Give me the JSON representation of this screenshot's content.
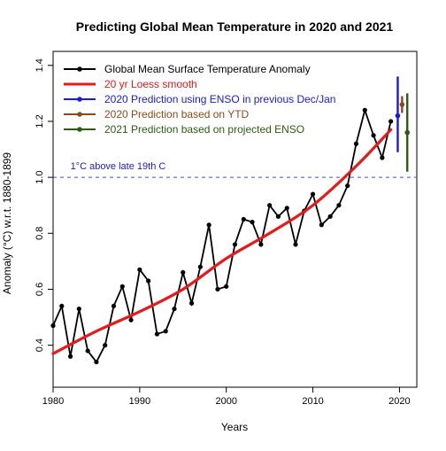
{
  "chart_data": {
    "type": "line",
    "title": "Predicting Global Mean Temperature in 2020 and 2021",
    "xlabel": "Years",
    "ylabel": "Anomaly (°C) w.r.t. 1880-1899",
    "xlim": [
      1980,
      2022
    ],
    "ylim": [
      0.25,
      1.45
    ],
    "x_ticks": [
      1980,
      1990,
      2000,
      2010,
      2020
    ],
    "y_ticks": [
      0.4,
      0.6,
      0.8,
      1.0,
      1.2,
      1.4
    ],
    "y_tick_labels": [
      "0.4",
      "0.6",
      "0.8",
      "1.0",
      "1.2",
      "1.4"
    ],
    "grid": false,
    "legend_position": "top-left",
    "series": [
      {
        "name": "Global Mean Surface Temperature Anomaly",
        "style": "line-markers",
        "color": "#000000",
        "x": [
          1980,
          1981,
          1982,
          1983,
          1984,
          1985,
          1986,
          1987,
          1988,
          1989,
          1990,
          1991,
          1992,
          1993,
          1994,
          1995,
          1996,
          1997,
          1998,
          1999,
          2000,
          2001,
          2002,
          2003,
          2004,
          2005,
          2006,
          2007,
          2008,
          2009,
          2010,
          2011,
          2012,
          2013,
          2014,
          2015,
          2016,
          2017,
          2018,
          2019
        ],
        "y": [
          0.47,
          0.54,
          0.36,
          0.53,
          0.38,
          0.34,
          0.4,
          0.54,
          0.61,
          0.49,
          0.67,
          0.63,
          0.44,
          0.45,
          0.53,
          0.66,
          0.55,
          0.68,
          0.83,
          0.6,
          0.61,
          0.76,
          0.85,
          0.84,
          0.76,
          0.9,
          0.86,
          0.89,
          0.76,
          0.88,
          0.94,
          0.83,
          0.86,
          0.9,
          0.97,
          1.12,
          1.24,
          1.15,
          1.07,
          1.2
        ]
      },
      {
        "name": "20 yr Loess smooth",
        "style": "line",
        "color": "#e8191a",
        "x": [
          1980,
          1985,
          1990,
          1995,
          2000,
          2005,
          2010,
          2015,
          2019
        ],
        "y": [
          0.37,
          0.45,
          0.52,
          0.6,
          0.71,
          0.8,
          0.9,
          1.04,
          1.17
        ]
      },
      {
        "name": "2020 Prediction using ENSO in previous Dec/Jan",
        "style": "point-errorbar",
        "color": "#1a1adb",
        "x": [
          2019.8
        ],
        "y": [
          1.22
        ],
        "low": [
          1.09
        ],
        "high": [
          1.36
        ]
      },
      {
        "name": "2020 Prediction based on YTD",
        "style": "point-errorbar",
        "color": "#8b4a1c",
        "x": [
          2020.3
        ],
        "y": [
          1.26
        ],
        "low": [
          1.23
        ],
        "high": [
          1.29
        ]
      },
      {
        "name": "2021 Prediction based on projected ENSO",
        "style": "point-errorbar",
        "color": "#2f5a12",
        "x": [
          2020.9
        ],
        "y": [
          1.16
        ],
        "low": [
          1.02
        ],
        "high": [
          1.3
        ]
      }
    ],
    "reference_lines": [
      {
        "y": 1.0,
        "label": "1°C above late 19th C",
        "color": "#3b55c9",
        "style": "dashed"
      }
    ]
  }
}
